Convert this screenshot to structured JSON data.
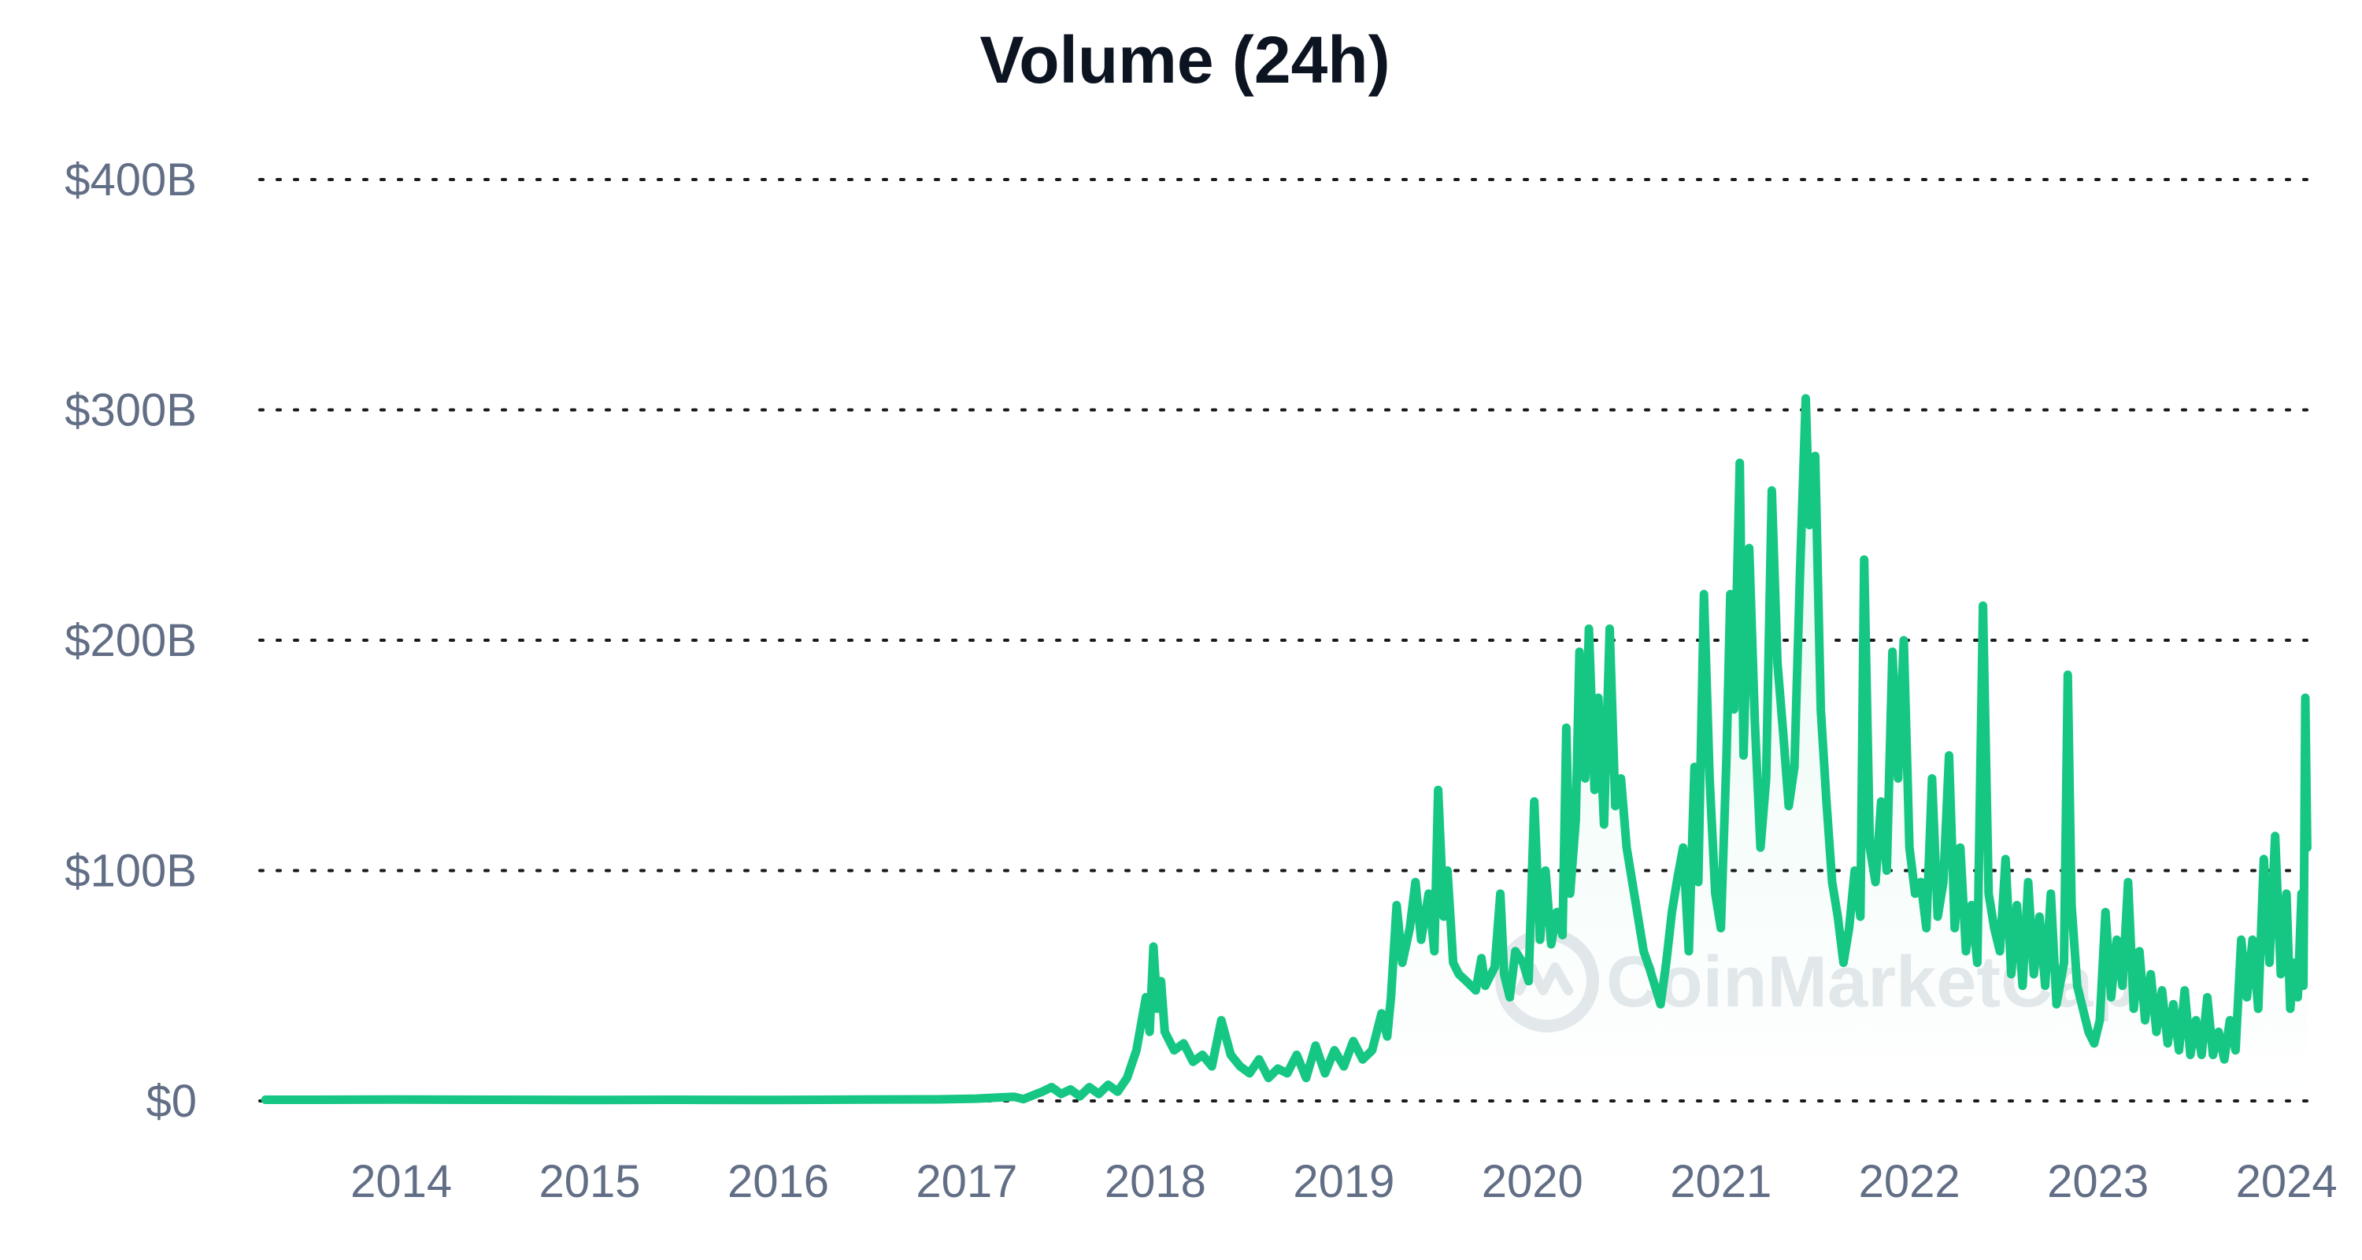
{
  "chart_data": {
    "type": "area",
    "title": "Volume (24h)",
    "watermark": "CoinMarketCap",
    "y_ticks": [
      "$0",
      "$100B",
      "$200B",
      "$300B",
      "$400B"
    ],
    "y_tick_values": [
      0,
      100,
      200,
      300,
      400
    ],
    "x_ticks": [
      "2014",
      "2015",
      "2016",
      "2017",
      "2018",
      "2019",
      "2020",
      "2021",
      "2022",
      "2023",
      "2024"
    ],
    "x_tick_values": [
      2014,
      2015,
      2016,
      2017,
      2018,
      2019,
      2020,
      2021,
      2022,
      2023,
      2024
    ],
    "xlim": [
      2013.3,
      2024.2
    ],
    "ylim": [
      0,
      400
    ],
    "units": "billions USD",
    "grid": true,
    "colors": {
      "line": "#16c784",
      "fill": "#16c784",
      "grid": "#1b1b1b",
      "title": "#0d1421",
      "tick": "#616e85",
      "watermark": "#e5e8ec"
    },
    "series": [
      {
        "values": [
          [
            2013.33,
            0.5
          ],
          [
            2013.6,
            0.5
          ],
          [
            2014.0,
            0.6
          ],
          [
            2014.5,
            0.5
          ],
          [
            2015.0,
            0.4
          ],
          [
            2015.5,
            0.5
          ],
          [
            2016.0,
            0.4
          ],
          [
            2016.5,
            0.6
          ],
          [
            2016.9,
            0.7
          ],
          [
            2017.1,
            1.0
          ],
          [
            2017.3,
            1.8
          ],
          [
            2017.35,
            0.8
          ],
          [
            2017.45,
            4
          ],
          [
            2017.5,
            6
          ],
          [
            2017.55,
            3
          ],
          [
            2017.6,
            5
          ],
          [
            2017.65,
            2
          ],
          [
            2017.7,
            6
          ],
          [
            2017.75,
            3
          ],
          [
            2017.8,
            7
          ],
          [
            2017.85,
            4
          ],
          [
            2017.9,
            10
          ],
          [
            2017.95,
            22
          ],
          [
            2018.0,
            45
          ],
          [
            2018.02,
            30
          ],
          [
            2018.04,
            67
          ],
          [
            2018.06,
            40
          ],
          [
            2018.08,
            52
          ],
          [
            2018.1,
            30
          ],
          [
            2018.15,
            22
          ],
          [
            2018.2,
            25
          ],
          [
            2018.25,
            17
          ],
          [
            2018.3,
            20
          ],
          [
            2018.35,
            15
          ],
          [
            2018.4,
            35
          ],
          [
            2018.45,
            20
          ],
          [
            2018.5,
            15
          ],
          [
            2018.55,
            12
          ],
          [
            2018.6,
            18
          ],
          [
            2018.65,
            10
          ],
          [
            2018.7,
            14
          ],
          [
            2018.75,
            12
          ],
          [
            2018.8,
            20
          ],
          [
            2018.85,
            10
          ],
          [
            2018.9,
            24
          ],
          [
            2018.95,
            12
          ],
          [
            2019.0,
            22
          ],
          [
            2019.05,
            15
          ],
          [
            2019.1,
            26
          ],
          [
            2019.15,
            18
          ],
          [
            2019.2,
            22
          ],
          [
            2019.25,
            38
          ],
          [
            2019.28,
            28
          ],
          [
            2019.3,
            45
          ],
          [
            2019.33,
            85
          ],
          [
            2019.36,
            60
          ],
          [
            2019.4,
            75
          ],
          [
            2019.43,
            95
          ],
          [
            2019.46,
            70
          ],
          [
            2019.5,
            90
          ],
          [
            2019.53,
            65
          ],
          [
            2019.55,
            135
          ],
          [
            2019.58,
            80
          ],
          [
            2019.6,
            100
          ],
          [
            2019.63,
            60
          ],
          [
            2019.66,
            55
          ],
          [
            2019.7,
            52
          ],
          [
            2019.75,
            48
          ],
          [
            2019.78,
            62
          ],
          [
            2019.8,
            50
          ],
          [
            2019.85,
            58
          ],
          [
            2019.88,
            90
          ],
          [
            2019.9,
            55
          ],
          [
            2019.93,
            45
          ],
          [
            2019.96,
            65
          ],
          [
            2020.0,
            60
          ],
          [
            2020.03,
            52
          ],
          [
            2020.06,
            130
          ],
          [
            2020.09,
            70
          ],
          [
            2020.12,
            100
          ],
          [
            2020.15,
            68
          ],
          [
            2020.18,
            82
          ],
          [
            2020.21,
            72
          ],
          [
            2020.23,
            162
          ],
          [
            2020.25,
            90
          ],
          [
            2020.28,
            122
          ],
          [
            2020.3,
            195
          ],
          [
            2020.33,
            140
          ],
          [
            2020.35,
            205
          ],
          [
            2020.38,
            135
          ],
          [
            2020.4,
            175
          ],
          [
            2020.43,
            120
          ],
          [
            2020.46,
            205
          ],
          [
            2020.49,
            128
          ],
          [
            2020.52,
            140
          ],
          [
            2020.55,
            110
          ],
          [
            2020.58,
            95
          ],
          [
            2020.61,
            80
          ],
          [
            2020.64,
            65
          ],
          [
            2020.67,
            58
          ],
          [
            2020.7,
            50
          ],
          [
            2020.73,
            42
          ],
          [
            2020.76,
            60
          ],
          [
            2020.79,
            82
          ],
          [
            2020.82,
            97
          ],
          [
            2020.85,
            110
          ],
          [
            2020.88,
            65
          ],
          [
            2020.91,
            145
          ],
          [
            2020.93,
            95
          ],
          [
            2020.96,
            220
          ],
          [
            2020.99,
            140
          ],
          [
            2021.02,
            90
          ],
          [
            2021.05,
            75
          ],
          [
            2021.08,
            150
          ],
          [
            2021.1,
            220
          ],
          [
            2021.12,
            170
          ],
          [
            2021.15,
            277
          ],
          [
            2021.17,
            150
          ],
          [
            2021.2,
            240
          ],
          [
            2021.23,
            165
          ],
          [
            2021.26,
            110
          ],
          [
            2021.29,
            140
          ],
          [
            2021.32,
            265
          ],
          [
            2021.35,
            190
          ],
          [
            2021.38,
            160
          ],
          [
            2021.41,
            128
          ],
          [
            2021.44,
            145
          ],
          [
            2021.47,
            230
          ],
          [
            2021.5,
            305
          ],
          [
            2021.52,
            250
          ],
          [
            2021.55,
            280
          ],
          [
            2021.58,
            170
          ],
          [
            2021.61,
            130
          ],
          [
            2021.64,
            95
          ],
          [
            2021.67,
            80
          ],
          [
            2021.7,
            60
          ],
          [
            2021.73,
            75
          ],
          [
            2021.76,
            100
          ],
          [
            2021.79,
            80
          ],
          [
            2021.81,
            235
          ],
          [
            2021.84,
            110
          ],
          [
            2021.87,
            95
          ],
          [
            2021.9,
            130
          ],
          [
            2021.93,
            100
          ],
          [
            2021.96,
            195
          ],
          [
            2021.99,
            140
          ],
          [
            2022.02,
            200
          ],
          [
            2022.05,
            110
          ],
          [
            2022.08,
            90
          ],
          [
            2022.11,
            95
          ],
          [
            2022.14,
            75
          ],
          [
            2022.17,
            140
          ],
          [
            2022.2,
            80
          ],
          [
            2022.23,
            95
          ],
          [
            2022.26,
            150
          ],
          [
            2022.29,
            75
          ],
          [
            2022.32,
            110
          ],
          [
            2022.35,
            65
          ],
          [
            2022.38,
            85
          ],
          [
            2022.41,
            60
          ],
          [
            2022.44,
            215
          ],
          [
            2022.47,
            90
          ],
          [
            2022.5,
            75
          ],
          [
            2022.53,
            65
          ],
          [
            2022.56,
            105
          ],
          [
            2022.59,
            55
          ],
          [
            2022.62,
            85
          ],
          [
            2022.65,
            50
          ],
          [
            2022.68,
            95
          ],
          [
            2022.71,
            55
          ],
          [
            2022.74,
            80
          ],
          [
            2022.77,
            50
          ],
          [
            2022.8,
            90
          ],
          [
            2022.83,
            42
          ],
          [
            2022.87,
            60
          ],
          [
            2022.89,
            185
          ],
          [
            2022.91,
            85
          ],
          [
            2022.94,
            50
          ],
          [
            2022.97,
            40
          ],
          [
            2023.0,
            30
          ],
          [
            2023.03,
            25
          ],
          [
            2023.06,
            35
          ],
          [
            2023.09,
            82
          ],
          [
            2023.12,
            45
          ],
          [
            2023.15,
            70
          ],
          [
            2023.18,
            50
          ],
          [
            2023.21,
            95
          ],
          [
            2023.24,
            40
          ],
          [
            2023.27,
            65
          ],
          [
            2023.3,
            35
          ],
          [
            2023.33,
            55
          ],
          [
            2023.36,
            30
          ],
          [
            2023.39,
            48
          ],
          [
            2023.42,
            25
          ],
          [
            2023.45,
            42
          ],
          [
            2023.48,
            22
          ],
          [
            2023.51,
            48
          ],
          [
            2023.54,
            20
          ],
          [
            2023.57,
            35
          ],
          [
            2023.6,
            20
          ],
          [
            2023.63,
            45
          ],
          [
            2023.66,
            20
          ],
          [
            2023.69,
            30
          ],
          [
            2023.72,
            18
          ],
          [
            2023.75,
            35
          ],
          [
            2023.78,
            22
          ],
          [
            2023.81,
            70
          ],
          [
            2023.84,
            45
          ],
          [
            2023.87,
            70
          ],
          [
            2023.9,
            40
          ],
          [
            2023.93,
            105
          ],
          [
            2023.96,
            60
          ],
          [
            2023.99,
            115
          ],
          [
            2024.02,
            55
          ],
          [
            2024.05,
            90
          ],
          [
            2024.07,
            40
          ],
          [
            2024.09,
            60
          ],
          [
            2024.11,
            45
          ],
          [
            2024.13,
            90
          ],
          [
            2024.14,
            50
          ],
          [
            2024.15,
            175
          ],
          [
            2024.16,
            110
          ]
        ]
      }
    ]
  }
}
